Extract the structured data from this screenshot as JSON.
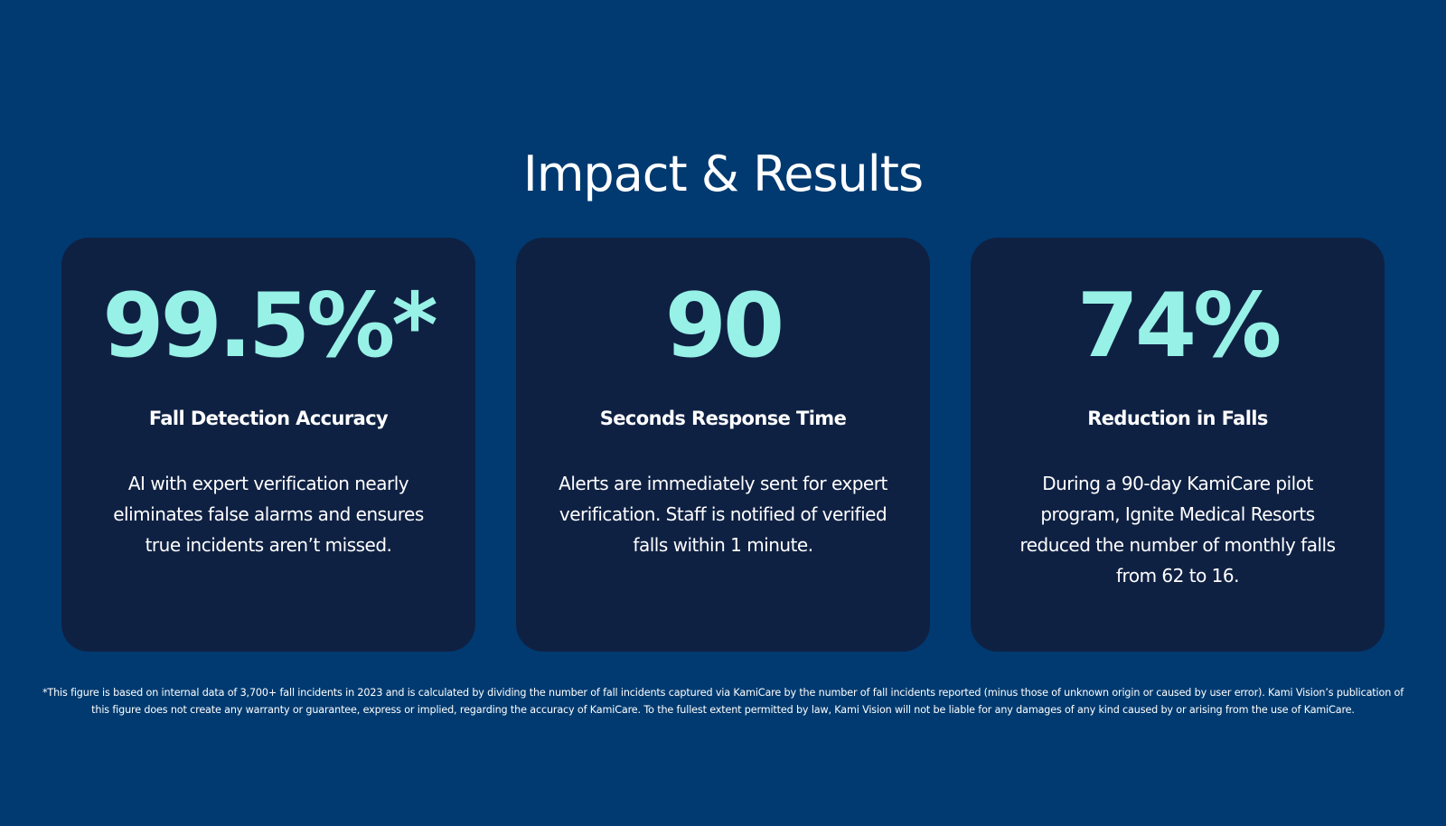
{
  "page": {
    "title": "Impact & Results"
  },
  "cards": [
    {
      "stat": "99.5%*",
      "label": "Fall Detection Accuracy",
      "description": "AI with expert verification nearly eliminates false alarms and ensures true incidents aren’t missed."
    },
    {
      "stat": "90",
      "label": "Seconds Response Time",
      "description": "Alerts are immediately sent for expert verification. Staff is notified of verified falls within 1 minute."
    },
    {
      "stat": "74%",
      "label": "Reduction in Falls",
      "description": "During a 90-day KamiCare pilot program, Ignite Medical Resorts reduced the number of monthly falls from 62 to 16."
    }
  ],
  "footnote": "*This figure is based on internal data of 3,700+ fall incidents in 2023 and is calculated by dividing the number of fall incidents captured via KamiCare by the number of fall incidents reported (minus those of unknown origin or caused by user error). Kami Vision’s publication of this figure does not create any warranty or guarantee, express or implied, regarding the accuracy of KamiCare. To the fullest extent permitted by law, Kami Vision will not be liable for any damages of any kind caused by or arising from the use of KamiCare.",
  "colors": {
    "background": "#003a70",
    "card_background": "#0f2143",
    "stat_accent": "#97f1e6",
    "text": "#ffffff"
  }
}
